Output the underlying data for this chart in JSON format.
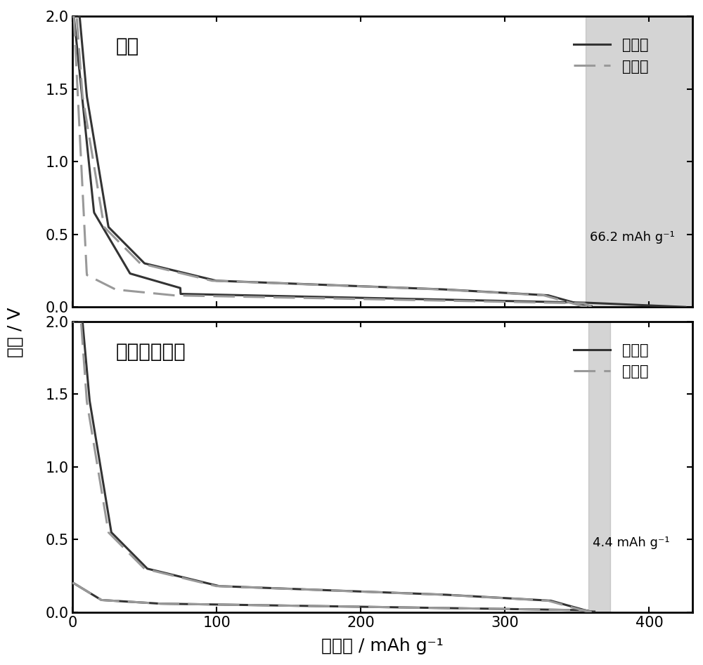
{
  "title_top": "石墨",
  "title_bottom": "锂化后的石墨",
  "xlabel": "比容量 / mAh g⁻¹",
  "ylabel": "电压 / V",
  "legend_cycle1": "第一周",
  "legend_cycle2": "第二周",
  "ylim": [
    0.0,
    2.0
  ],
  "xlim": [
    0,
    430
  ],
  "annotation_top": "66.2 mAh g⁻¹",
  "annotation_bottom": "4.4 mAh g⁻¹",
  "shade_top_x1": 356,
  "shade_top_x2": 430,
  "shade_bottom_x1": 358,
  "shade_bottom_x2": 373,
  "shade_color": "#aaaaaa",
  "line_color_solid": "#333333",
  "line_color_dashed": "#999999",
  "linewidth": 2.2,
  "figsize": [
    10.0,
    9.47
  ],
  "dpi": 100
}
